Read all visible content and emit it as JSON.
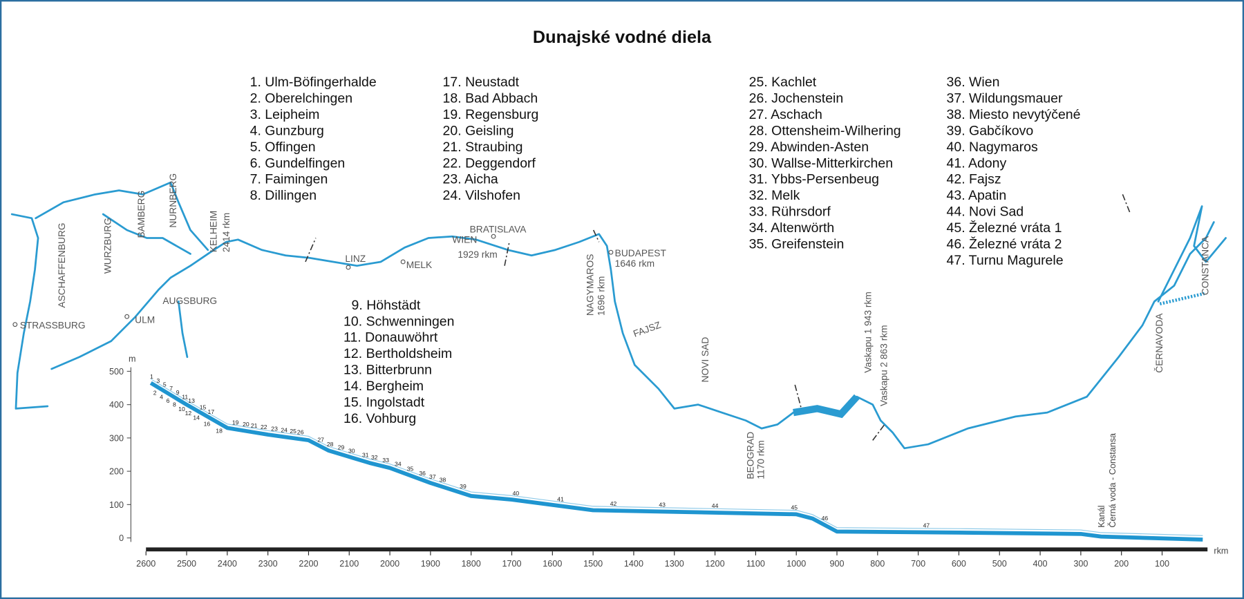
{
  "title": "Dunajské vodné diela",
  "dam_columns": [
    [
      "1. Ulm-Böfingerhalde",
      "2. Oberelchingen",
      "3. Leipheim",
      "4. Gunzburg",
      "5. Offingen",
      "6. Gundelfingen",
      "7. Faimingen",
      "8. Dillingen"
    ],
    [
      "17. Neustadt",
      "18. Bad Abbach",
      "19. Regensburg",
      "20. Geisling",
      "21. Straubing",
      "22. Deggendorf",
      "23. Aicha",
      "24. Vilshofen"
    ],
    [
      "9. Höhstädt",
      "10. Schwenningen",
      "11. Donauwöhrt",
      "12. Bertholdsheim",
      "13. Bitterbrunn",
      "14. Bergheim",
      "15. Ingolstadt",
      "16. Vohburg"
    ],
    [
      "25. Kachlet",
      "26. Jochenstein",
      "27. Aschach",
      "28. Ottensheim-Wilhering",
      "29. Abwinden-Asten",
      "30. Wallse-Mitterkirchen",
      "31. Ybbs-Persenbeug",
      "32. Melk",
      "33. Rührsdorf",
      "34. Altenwörth",
      "35. Greifenstein"
    ],
    [
      "36. Wien",
      "37. Wildungsmauer",
      "38. Miesto nevytýčené",
      "39. Gabčíkovo",
      "40. Nagymaros",
      "41. Adony",
      "42. Fajsz",
      "43. Apatin",
      "44. Novi Sad",
      "45. Železné vráta 1",
      "46. Železné vráta 2",
      "47. Turnu Magurele"
    ]
  ],
  "map_labels": [
    "STRASSBURG",
    "ULM",
    "AUGSBURG",
    "ASCHAFFENBURG",
    "WURZBURG",
    "BAMBERG",
    "NURNBERG",
    "KELHEIM",
    "2414 rkm",
    "LINZ",
    "MELK",
    "WIEN",
    "1929 rkm",
    "BRATISLAVA",
    "NAGYMAROS",
    "1696 rkm",
    "BUDAPEST",
    "1646 rkm",
    "FAJSZ",
    "NOVI SAD",
    "BEOGRAD",
    "1170 rkm",
    "Vaskapu 1  943 rkm",
    "Vaskapu 2  863 rkm",
    "ČERNAVODA",
    "CONSTANCA"
  ],
  "profile": {
    "y_unit": "m",
    "x_unit": "rkm",
    "ylim": [
      0,
      500
    ],
    "xlim": [
      2600,
      0
    ],
    "yticks": [
      0,
      100,
      200,
      300,
      400,
      500
    ],
    "xticks": [
      2600,
      2500,
      2400,
      2300,
      2200,
      2100,
      2000,
      1900,
      1800,
      1700,
      1600,
      1500,
      1400,
      1300,
      1200,
      1100,
      1000,
      900,
      800,
      700,
      600,
      500,
      400,
      300,
      200,
      100
    ],
    "rkm": [
      2588,
      2500,
      2400,
      2300,
      2200,
      2150,
      2050,
      2000,
      1900,
      1800,
      1700,
      1500,
      1000,
      960,
      900,
      600,
      300,
      250,
      0
    ],
    "elev": [
      465,
      400,
      330,
      310,
      293,
      262,
      225,
      210,
      165,
      126,
      115,
      83,
      71,
      58,
      19,
      16,
      12,
      4,
      -5
    ],
    "dam_labels": [
      "1",
      "2",
      "3",
      "4",
      "5",
      "6",
      "7",
      "8",
      "9",
      "10",
      "11",
      "12",
      "13",
      "14",
      "15",
      "16",
      "17",
      "18",
      "19",
      "20",
      "21",
      "22",
      "23",
      "24",
      "25",
      "26",
      "27",
      "28",
      "29",
      "30",
      "31",
      "32",
      "33",
      "34",
      "35",
      "36",
      "37",
      "38",
      "39",
      "40",
      "41",
      "42",
      "43",
      "44",
      "45",
      "46",
      "47"
    ],
    "dam_rkm": [
      2586,
      2578,
      2570,
      2562,
      2554,
      2546,
      2538,
      2530,
      2522,
      2512,
      2504,
      2496,
      2488,
      2476,
      2460,
      2450,
      2440,
      2420,
      2380,
      2354,
      2334,
      2310,
      2284,
      2260,
      2238,
      2220,
      2170,
      2147,
      2120,
      2094,
      2060,
      2038,
      2010,
      1980,
      1950,
      1920,
      1895,
      1870,
      1820,
      1690,
      1580,
      1450,
      1330,
      1200,
      1005,
      930,
      680
    ],
    "canal_label": [
      "Kanál",
      "Černá voda - Constansa"
    ]
  }
}
